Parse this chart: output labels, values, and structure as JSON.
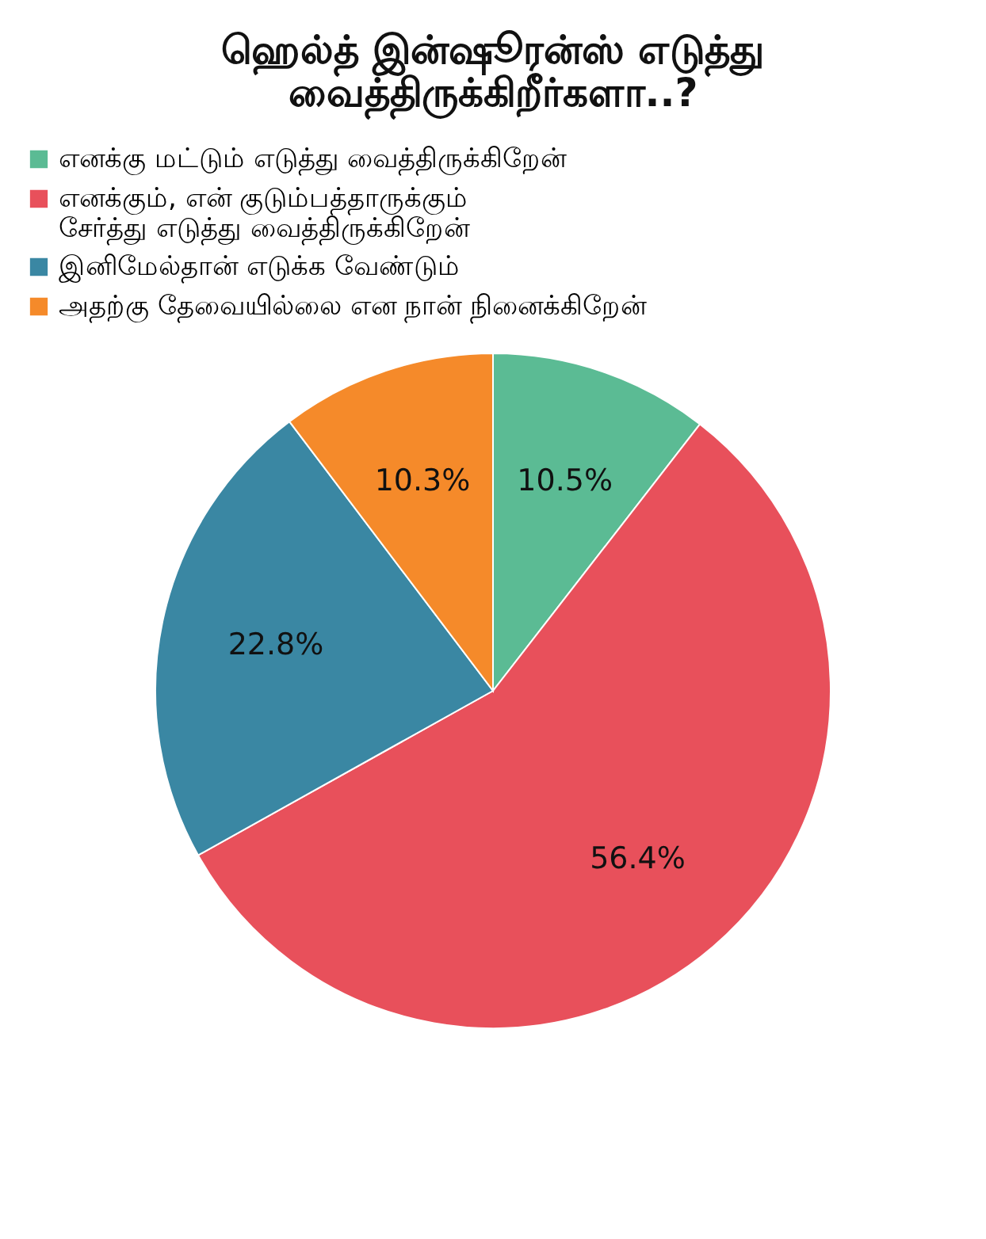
{
  "chart_data": {
    "type": "pie",
    "title": [
      "ஹெல்த் இன்ஷூரன்ஸ் எடுத்து",
      "வைத்திருக்கிறீர்களா..?"
    ],
    "categories": [
      "எனக்கு மட்டும் எடுத்து வைத்திருக்கிறேன்",
      "எனக்கும், என் குடும்பத்தாருக்கும் சேர்த்து எடுத்து வைத்திருக்கிறேன்",
      "இனிமேல்தான் எடுக்க வேண்டும்",
      "அதற்கு தேவையில்லை என நான் நினைக்கிறேன்"
    ],
    "values": [
      10.5,
      56.4,
      22.8,
      10.3
    ],
    "colors": [
      "#5bbb94",
      "#e8505b",
      "#3a87a3",
      "#f58a2a"
    ],
    "value_labels": [
      "10.5%",
      "56.4%",
      "22.8%",
      "10.3%"
    ],
    "legend": "top left"
  }
}
